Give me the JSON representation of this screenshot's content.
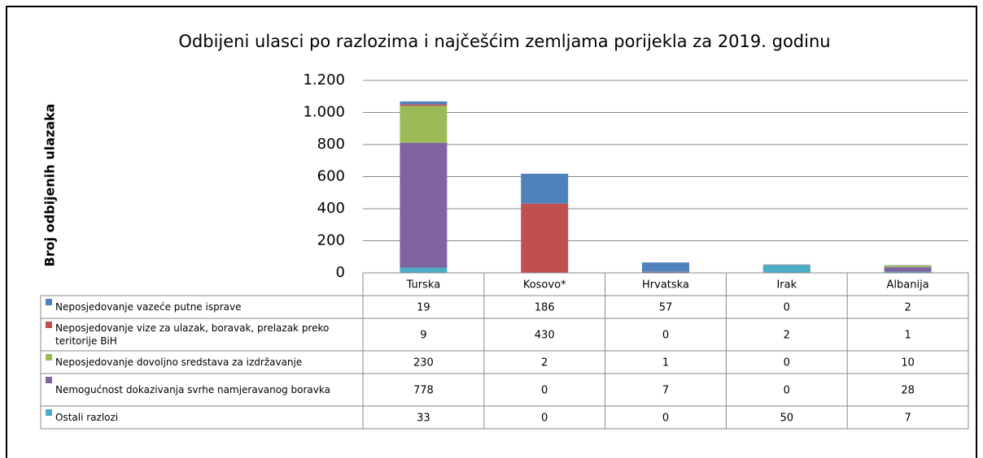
{
  "chart_data": {
    "type": "bar",
    "stacked": true,
    "title": "Odbijeni ulasci po razlozima i najčešćim zemljama porijekla za 2019. godinu",
    "y_label": "Broj odbijenih ulazaka",
    "categories": [
      "Turska",
      "Kosovo*",
      "Hrvatska",
      "Irak",
      "Albanija"
    ],
    "series": [
      {
        "name": "Neposjedovanje vazeće putne isprave",
        "color": "#4f81bd",
        "values": [
          19,
          186,
          57,
          0,
          2
        ]
      },
      {
        "name": "Neposjedovanje vize za ulazak, boravak, prelazak preko teritorije BiH",
        "color": "#c0504d",
        "values": [
          9,
          430,
          0,
          2,
          1
        ]
      },
      {
        "name": "Neposjedovanje dovoljno sredstava za izdržavanje",
        "color": "#9bbb59",
        "values": [
          230,
          2,
          1,
          0,
          10
        ]
      },
      {
        "name": "Nemogućnost dokazivanja svrhe namjeravanog boravka",
        "color": "#8064a2",
        "values": [
          778,
          0,
          7,
          0,
          28
        ]
      },
      {
        "name": "Ostali razlozi",
        "color": "#4bacc6",
        "values": [
          33,
          0,
          0,
          50,
          7
        ]
      }
    ],
    "ylim": [
      0,
      1200
    ],
    "yticks": [
      0,
      200,
      400,
      600,
      800,
      {
        "value": 1000,
        "label": "1.000"
      },
      {
        "value": 1200,
        "label": "1.200"
      }
    ],
    "grid": true
  }
}
